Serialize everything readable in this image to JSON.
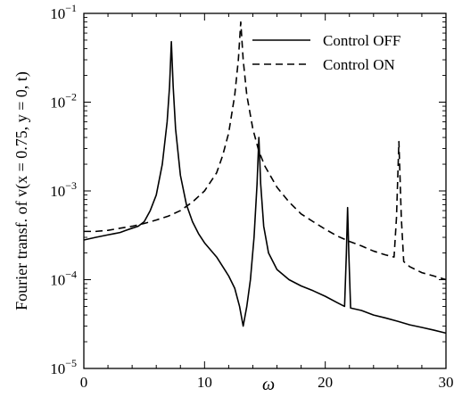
{
  "chart_data": {
    "type": "line",
    "xlabel": "ω",
    "ylabel": "Fourier transf. of v(x = 0.75, y = 0, t)",
    "xlim": [
      0,
      30
    ],
    "ylim": [
      1e-05,
      0.1
    ],
    "yscale": "log",
    "grid": false,
    "legend_position": "top-right",
    "x_ticks": [
      {
        "value": 0,
        "label": "0"
      },
      {
        "value": 10,
        "label": "10"
      },
      {
        "value": 20,
        "label": "20"
      },
      {
        "value": 30,
        "label": "30"
      }
    ],
    "y_ticks": [
      {
        "value": 1e-05,
        "base": "10",
        "exp": "−5"
      },
      {
        "value": 0.0001,
        "base": "10",
        "exp": "−4"
      },
      {
        "value": 0.001,
        "base": "10",
        "exp": "−3"
      },
      {
        "value": 0.01,
        "base": "10",
        "exp": "−2"
      },
      {
        "value": 0.1,
        "base": "10",
        "exp": "−1"
      }
    ],
    "series": [
      {
        "name": "Control OFF",
        "style": "solid",
        "points": [
          [
            0.0,
            0.00028
          ],
          [
            0.5,
            0.00029
          ],
          [
            1.0,
            0.0003
          ],
          [
            1.5,
            0.00031
          ],
          [
            2.0,
            0.00032
          ],
          [
            2.5,
            0.00033
          ],
          [
            3.0,
            0.00034
          ],
          [
            3.5,
            0.00036
          ],
          [
            4.0,
            0.00038
          ],
          [
            4.5,
            0.0004
          ],
          [
            5.0,
            0.00045
          ],
          [
            5.5,
            0.0006
          ],
          [
            6.0,
            0.0009
          ],
          [
            6.5,
            0.002
          ],
          [
            6.9,
            0.006
          ],
          [
            7.1,
            0.015
          ],
          [
            7.25,
            0.048
          ],
          [
            7.4,
            0.015
          ],
          [
            7.6,
            0.005
          ],
          [
            8.0,
            0.0015
          ],
          [
            8.5,
            0.0007
          ],
          [
            9.0,
            0.00045
          ],
          [
            9.5,
            0.00033
          ],
          [
            10.0,
            0.00026
          ],
          [
            11.0,
            0.00018
          ],
          [
            12.0,
            0.00011
          ],
          [
            12.5,
            8e-05
          ],
          [
            12.9,
            5e-05
          ],
          [
            13.2,
            3e-05
          ],
          [
            13.5,
            5e-05
          ],
          [
            13.8,
            0.0001
          ],
          [
            14.1,
            0.0003
          ],
          [
            14.35,
            0.0012
          ],
          [
            14.5,
            0.004
          ],
          [
            14.65,
            0.0012
          ],
          [
            14.9,
            0.0004
          ],
          [
            15.3,
            0.0002
          ],
          [
            16.0,
            0.00013
          ],
          [
            17.0,
            0.0001
          ],
          [
            18.0,
            8.5e-05
          ],
          [
            19.0,
            7.5e-05
          ],
          [
            20.0,
            6.5e-05
          ],
          [
            21.0,
            5.5e-05
          ],
          [
            21.6,
            5e-05
          ],
          [
            21.75,
            0.0002
          ],
          [
            21.85,
            0.00065
          ],
          [
            21.95,
            0.0002
          ],
          [
            22.1,
            4.8e-05
          ],
          [
            23.0,
            4.5e-05
          ],
          [
            24.0,
            4e-05
          ],
          [
            25.0,
            3.7e-05
          ],
          [
            26.0,
            3.4e-05
          ],
          [
            27.0,
            3.1e-05
          ],
          [
            28.0,
            2.9e-05
          ],
          [
            29.0,
            2.7e-05
          ],
          [
            30.0,
            2.5e-05
          ]
        ]
      },
      {
        "name": "Control ON",
        "style": "dashed",
        "points": [
          [
            0.0,
            0.00035
          ],
          [
            1.0,
            0.00035
          ],
          [
            2.0,
            0.00036
          ],
          [
            3.0,
            0.00038
          ],
          [
            4.0,
            0.0004
          ],
          [
            5.0,
            0.00043
          ],
          [
            6.0,
            0.00047
          ],
          [
            7.0,
            0.00052
          ],
          [
            8.0,
            0.0006
          ],
          [
            9.0,
            0.00075
          ],
          [
            10.0,
            0.001
          ],
          [
            11.0,
            0.0016
          ],
          [
            11.5,
            0.0025
          ],
          [
            12.0,
            0.0045
          ],
          [
            12.5,
            0.012
          ],
          [
            12.8,
            0.03
          ],
          [
            13.0,
            0.08
          ],
          [
            13.2,
            0.03
          ],
          [
            13.5,
            0.012
          ],
          [
            14.0,
            0.005
          ],
          [
            14.5,
            0.0028
          ],
          [
            15.0,
            0.0019
          ],
          [
            16.0,
            0.0011
          ],
          [
            17.0,
            0.00075
          ],
          [
            18.0,
            0.00055
          ],
          [
            19.0,
            0.00045
          ],
          [
            20.0,
            0.00037
          ],
          [
            21.0,
            0.00031
          ],
          [
            22.0,
            0.00027
          ],
          [
            23.0,
            0.00024
          ],
          [
            24.0,
            0.00021
          ],
          [
            25.0,
            0.00019
          ],
          [
            25.7,
            0.00018
          ],
          [
            25.9,
            0.0005
          ],
          [
            26.1,
            0.0036
          ],
          [
            26.3,
            0.0005
          ],
          [
            26.5,
            0.00016
          ],
          [
            27.0,
            0.00014
          ],
          [
            28.0,
            0.00012
          ],
          [
            29.0,
            0.00011
          ],
          [
            30.0,
            0.0001
          ]
        ]
      }
    ]
  }
}
